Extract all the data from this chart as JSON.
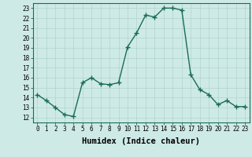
{
  "x": [
    0,
    1,
    2,
    3,
    4,
    5,
    6,
    7,
    8,
    9,
    10,
    11,
    12,
    13,
    14,
    15,
    16,
    17,
    18,
    19,
    20,
    21,
    22,
    23
  ],
  "y": [
    14.3,
    13.7,
    13.0,
    12.3,
    12.1,
    15.5,
    16.0,
    15.4,
    15.3,
    15.5,
    19.1,
    20.5,
    22.3,
    22.1,
    23.0,
    23.0,
    22.8,
    16.3,
    14.8,
    14.3,
    13.3,
    13.7,
    13.1,
    13.1
  ],
  "xlim": [
    -0.5,
    23.5
  ],
  "ylim": [
    11.5,
    23.5
  ],
  "yticks": [
    12,
    13,
    14,
    15,
    16,
    17,
    18,
    19,
    20,
    21,
    22,
    23
  ],
  "xticks": [
    0,
    1,
    2,
    3,
    4,
    5,
    6,
    7,
    8,
    9,
    10,
    11,
    12,
    13,
    14,
    15,
    16,
    17,
    18,
    19,
    20,
    21,
    22,
    23
  ],
  "xlabel": "Humidex (Indice chaleur)",
  "line_color": "#1a6b5a",
  "marker": "+",
  "marker_size": 4,
  "line_width": 1.0,
  "bg_color": "#ceeae6",
  "grid_color": "#b0d4ce",
  "tick_fontsize": 5.5,
  "xlabel_fontsize": 7.5
}
